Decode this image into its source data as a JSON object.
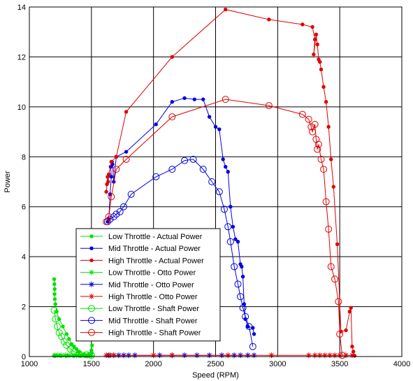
{
  "chart_data": {
    "type": "line",
    "title": "",
    "xlabel": "Speed (RPM)",
    "ylabel": "Power",
    "xlim": [
      1000,
      4000
    ],
    "ylim": [
      0,
      14
    ],
    "xticks": [
      "1000",
      "1500",
      "2000",
      "2500",
      "3000",
      "3500",
      "4000"
    ],
    "yticks": [
      "0",
      "2",
      "4",
      "6",
      "8",
      "10",
      "12",
      "14"
    ],
    "grid": true,
    "legend_position": "lower-left",
    "series": [
      {
        "name": "Low Throttle - Actual Power",
        "color": "#00e000",
        "marker": "dot",
        "x": [
          1200,
          1202,
          1204,
          1203,
          1205,
          1210,
          1220,
          1240,
          1270,
          1300,
          1320,
          1340,
          1360,
          1380,
          1400,
          1440,
          1480,
          1500,
          1505,
          1500,
          1490,
          1470,
          1450,
          1420,
          1400,
          1360,
          1300,
          1250,
          1210,
          1200
        ],
        "y": [
          3.1,
          2.9,
          2.7,
          2.5,
          2.3,
          2.1,
          1.8,
          1.5,
          1.2,
          0.9,
          0.7,
          0.5,
          0.4,
          0.3,
          0.2,
          0.1,
          0.1,
          0.25,
          0.45,
          0.15,
          0.05,
          0.03,
          0.03,
          0.03,
          0.03,
          0.03,
          0.03,
          0.03,
          0.03,
          0.03
        ]
      },
      {
        "name": "Mid Throttle - Actual Power",
        "color": "#0000e0",
        "marker": "dot",
        "x": [
          1630,
          1640,
          1650,
          1660,
          1655,
          1665,
          1670,
          1680,
          1700,
          1780,
          2020,
          2150,
          2250,
          2330,
          2400,
          2450,
          2500,
          2530,
          2560,
          2580,
          2600,
          2620,
          2640,
          2660,
          2680,
          2700,
          2710,
          2720,
          2730,
          2740,
          2760,
          2800,
          2810
        ],
        "y": [
          5.4,
          5.5,
          6.5,
          7.2,
          7.6,
          7.8,
          7.7,
          7.0,
          8.0,
          8.2,
          9.3,
          10.2,
          10.35,
          10.3,
          10.3,
          9.6,
          9.2,
          9.1,
          7.9,
          7.6,
          7.4,
          6.0,
          5.2,
          4.7,
          4.6,
          3.7,
          3.6,
          3.2,
          2.1,
          1.5,
          1.2,
          1.15,
          0.9
        ]
      },
      {
        "name": "High Throttle - Actual Power",
        "color": "#e00000",
        "marker": "dot",
        "x": [
          1620,
          1625,
          1630,
          1635,
          1640,
          1660,
          1700,
          1780,
          2150,
          2580,
          2930,
          3200,
          3280,
          3300,
          3290,
          3310,
          3320,
          3330,
          3340,
          3350,
          3370,
          3390,
          3410,
          3430,
          3450,
          3480,
          3510,
          3550,
          3580,
          3590,
          3600,
          3610,
          3620
        ],
        "y": [
          6.6,
          6.9,
          7.2,
          7.0,
          7.3,
          7.8,
          8.0,
          9.8,
          12.0,
          13.9,
          13.5,
          13.3,
          13.2,
          12.7,
          12.1,
          12.9,
          12.5,
          11.9,
          11.8,
          11.5,
          10.8,
          10.2,
          9.2,
          7.9,
          6.8,
          4.5,
          1.0,
          1.05,
          1.8,
          1.95,
          0.4,
          0.2,
          0.03
        ]
      },
      {
        "name": "Low Throttle - Otto Power",
        "color": "#00e000",
        "marker": "star",
        "x": [
          1205,
          1230,
          1260,
          1290,
          1320,
          1350,
          1380,
          1410,
          1440,
          1480,
          1500
        ],
        "y": [
          0.05,
          0.05,
          0.05,
          0.05,
          0.05,
          0.05,
          0.05,
          0.05,
          0.05,
          0.05,
          0.05
        ]
      },
      {
        "name": "Mid Throttle - Otto Power",
        "color": "#0000e0",
        "marker": "star",
        "x": [
          1640,
          1680,
          1720,
          1760,
          1800,
          1850,
          2050,
          2150,
          2250,
          2350,
          2450,
          2550,
          2650,
          2700,
          2760,
          2810
        ],
        "y": [
          0.05,
          0.05,
          0.05,
          0.05,
          0.05,
          0.05,
          0.05,
          0.05,
          0.05,
          0.05,
          0.05,
          0.05,
          0.05,
          0.05,
          0.05,
          0.05
        ]
      },
      {
        "name": "High Throttle - Otto Power",
        "color": "#e00000",
        "marker": "star",
        "x": [
          1620,
          1650,
          1680,
          2000,
          2150,
          2600,
          2950,
          3250,
          3300,
          3340,
          3380,
          3420,
          3460,
          3500,
          3550,
          3600
        ],
        "y": [
          0.05,
          0.05,
          0.05,
          0.05,
          0.05,
          0.05,
          0.05,
          0.05,
          0.05,
          0.05,
          0.05,
          0.05,
          0.05,
          0.05,
          0.05,
          0.05
        ]
      },
      {
        "name": "Low Throttle - Shaft Power",
        "color": "#00e000",
        "marker": "circle",
        "x": [
          1200,
          1210,
          1225,
          1240,
          1260,
          1280,
          1300,
          1330,
          1360,
          1400,
          1460,
          1500
        ],
        "y": [
          1.85,
          1.5,
          1.2,
          0.95,
          0.8,
          0.6,
          0.45,
          0.3,
          0.2,
          0.12,
          0.07,
          0.05
        ]
      },
      {
        "name": "Mid Throttle - Shaft Power",
        "color": "#0000e0",
        "marker": "circle",
        "x": [
          1630,
          1650,
          1680,
          1700,
          1730,
          1760,
          1820,
          2020,
          2150,
          2250,
          2320,
          2400,
          2470,
          2530,
          2570,
          2600,
          2620,
          2650,
          2680,
          2700,
          2720,
          2740,
          2770,
          2800
        ],
        "y": [
          5.4,
          5.5,
          5.6,
          5.7,
          5.8,
          6.0,
          6.5,
          7.2,
          7.5,
          7.85,
          7.9,
          7.5,
          7.0,
          6.6,
          5.9,
          5.2,
          4.6,
          3.6,
          2.9,
          2.4,
          1.95,
          1.6,
          1.2,
          0.4
        ]
      },
      {
        "name": "High Throttle - Shaft Power",
        "color": "#e00000",
        "marker": "circle",
        "x": [
          1620,
          1640,
          1660,
          1700,
          1780,
          2150,
          2580,
          2930,
          3200,
          3250,
          3270,
          3280,
          3300,
          3310,
          3320,
          3330,
          3350,
          3370,
          3390,
          3410,
          3430,
          3460,
          3490,
          3500,
          3520
        ],
        "y": [
          5.4,
          5.6,
          6.4,
          7.5,
          7.9,
          9.6,
          10.3,
          10.05,
          9.7,
          9.5,
          9.2,
          9.0,
          9.3,
          8.7,
          8.3,
          8.5,
          7.9,
          7.5,
          6.2,
          5.1,
          3.6,
          3.1,
          2.2,
          0.9,
          0.05
        ]
      }
    ]
  }
}
